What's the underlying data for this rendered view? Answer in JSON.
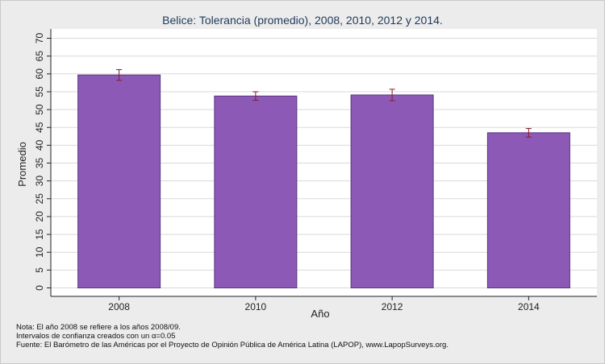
{
  "chart_data": {
    "type": "bar",
    "title": "Belice: Tolerancia (promedio), 2008, 2010, 2012 y 2014.",
    "xlabel": "Año",
    "ylabel": "Promedio",
    "categories": [
      "2008",
      "2010",
      "2012",
      "2014"
    ],
    "series": [
      {
        "values": [
          59.7,
          53.8,
          54.1,
          43.5
        ],
        "ci_low": [
          58.2,
          52.6,
          52.5,
          42.3
        ],
        "ci_high": [
          61.2,
          55.0,
          55.7,
          44.7
        ]
      }
    ],
    "ylim": [
      0,
      70
    ],
    "yticks": [
      0,
      5,
      10,
      15,
      20,
      25,
      30,
      35,
      40,
      45,
      50,
      55,
      60,
      65,
      70
    ],
    "grid": true,
    "colors": {
      "bar": "#8d59b6",
      "bar_edge": "#5a3580",
      "error_bar": "#8a1a2a",
      "grid": "#d9d9d9",
      "plot_bg": "#ffffff",
      "page_bg": "#ececec"
    }
  },
  "notes": [
    "Nota: El año 2008 se refiere a los años 2008/09.",
    "Intervalos de confianza creados con un α=0.05",
    "Fuente: El Barómetro de las Américas por el Proyecto de Opinión Pública de América Latina (LAPOP), www.LapopSurveys.org."
  ]
}
